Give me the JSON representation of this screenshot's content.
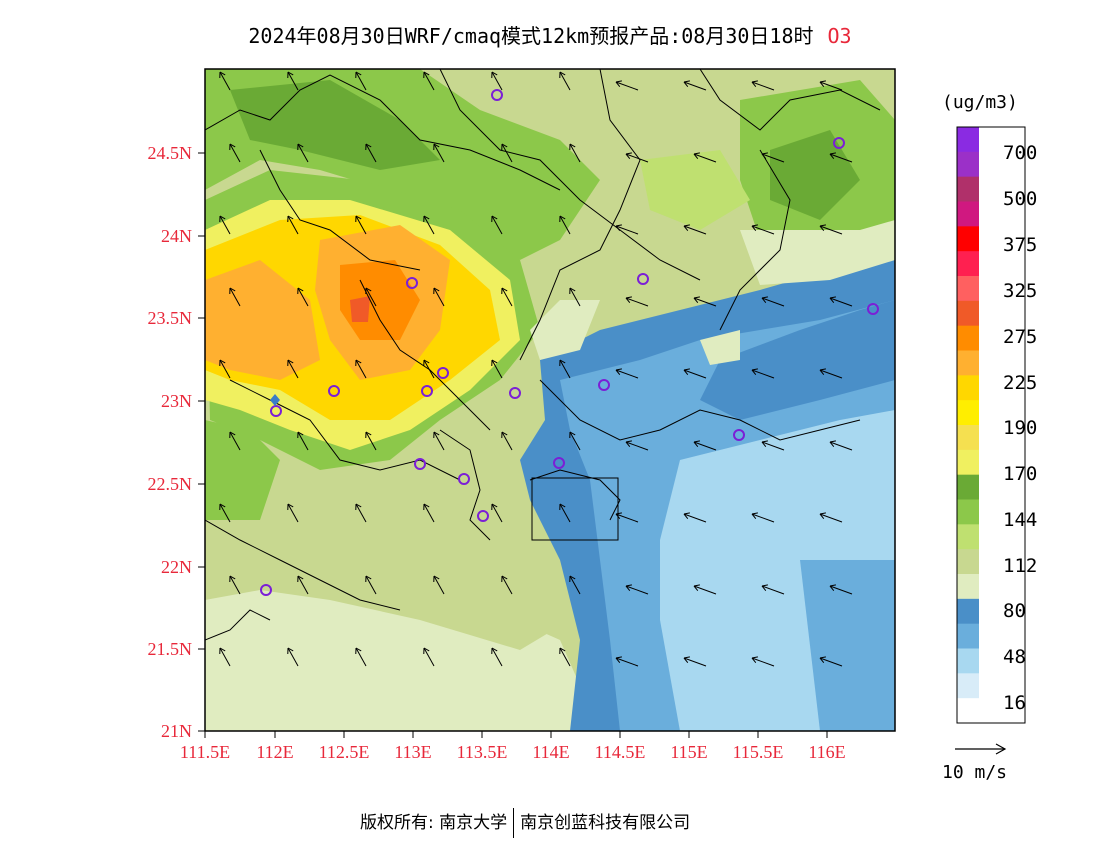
{
  "title": {
    "main": "2024年08月30日WRF/cmaq模式12km预报产品:08月30日18时",
    "species": "O3"
  },
  "axes": {
    "lat_labels": [
      "24.5N",
      "24N",
      "23.5N",
      "23N",
      "22.5N",
      "22N",
      "21.5N",
      "21N"
    ],
    "lon_labels": [
      "111.5E",
      "112E",
      "112.5E",
      "113E",
      "113.5E",
      "114E",
      "114.5E",
      "115E",
      "115.5E",
      "116E"
    ]
  },
  "colorbar": {
    "unit": "(ug/m3)",
    "labels": [
      "700",
      "500",
      "375",
      "325",
      "275",
      "225",
      "190",
      "170",
      "144",
      "112",
      "80",
      "48",
      "16"
    ],
    "colors": [
      "#8a2be2",
      "#9b30c8",
      "#b0306a",
      "#d01880",
      "#ff0000",
      "#ff2050",
      "#ff6060",
      "#f05a28",
      "#ff8c00",
      "#ffb030",
      "#ffd700",
      "#ffee00",
      "#f5e050",
      "#f0f060",
      "#6aaa35",
      "#8cc84a",
      "#bfe070",
      "#c8d890",
      "#e0ecc0",
      "#4a8fc8",
      "#6aaedc",
      "#a8d8f0",
      "#d8ecf8",
      "#ffffff"
    ]
  },
  "wind_reference": {
    "label": "10 m/s"
  },
  "footer": {
    "left": "版权所有: 南京大学",
    "right": "南京创蓝科技有限公司"
  }
}
